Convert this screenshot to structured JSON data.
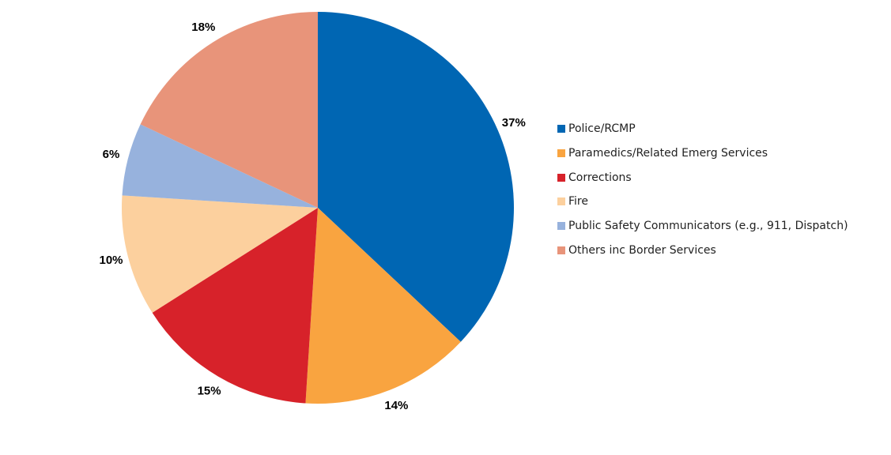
{
  "chart_data": {
    "type": "pie",
    "categories": [
      "Police/RCMP",
      "Paramedics/Related Emerg Services",
      "Corrections",
      "Fire",
      "Public Safety Communicators (e.g., 911, Dispatch)",
      "Others inc Border Services"
    ],
    "values": [
      37,
      14,
      15,
      10,
      6,
      18
    ],
    "labels": [
      "37%",
      "14%",
      "15%",
      "10%",
      "6%",
      "18%"
    ],
    "colors": [
      "#0066B3",
      "#F9A440",
      "#D7222A",
      "#FCD09E",
      "#97B2DD",
      "#E8947A"
    ],
    "start_angle": "12 o'clock",
    "direction": "clockwise",
    "legend_placement": "right"
  }
}
